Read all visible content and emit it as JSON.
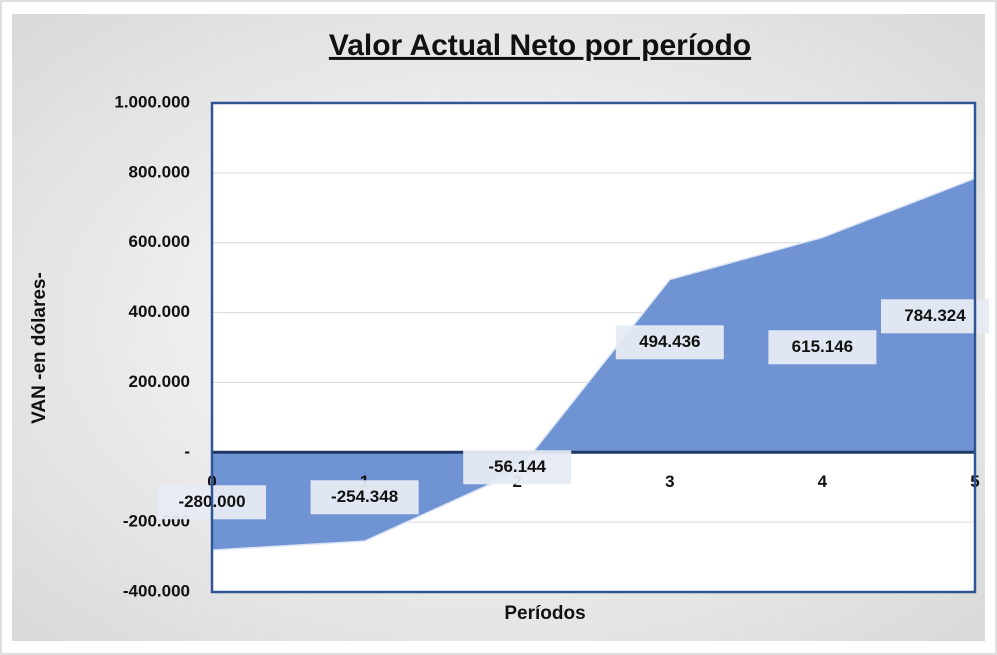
{
  "chart_data": {
    "type": "area",
    "title": "Valor Actual Neto por período",
    "x_label": "Períodos",
    "y_label": "VAN -en dólares-",
    "x": [
      0,
      1,
      2,
      3,
      4,
      5
    ],
    "xlim": [
      0,
      5
    ],
    "xticks": [
      0,
      1,
      2,
      3,
      4,
      5
    ],
    "values": [
      -280000,
      -254348,
      -56144,
      494436,
      615146,
      784324
    ],
    "value_labels": [
      "-280.000",
      "-254.348",
      "-56.144",
      "494.436",
      "615.146",
      "784.324"
    ],
    "color": "#7094d3",
    "ylim": [
      -400000,
      1000000
    ],
    "yticks": [
      {
        "value": -400000,
        "label": "-400.000"
      },
      {
        "value": -200000,
        "label": "-200.000"
      },
      {
        "value": 0,
        "label": "-"
      },
      {
        "value": 200000,
        "label": "200.000"
      },
      {
        "value": 400000,
        "label": "400.000"
      },
      {
        "value": 600000,
        "label": "600.000"
      },
      {
        "value": 800000,
        "label": "800.000"
      },
      {
        "value": 1000000,
        "label": "1.000.000"
      }
    ],
    "grid": true
  }
}
